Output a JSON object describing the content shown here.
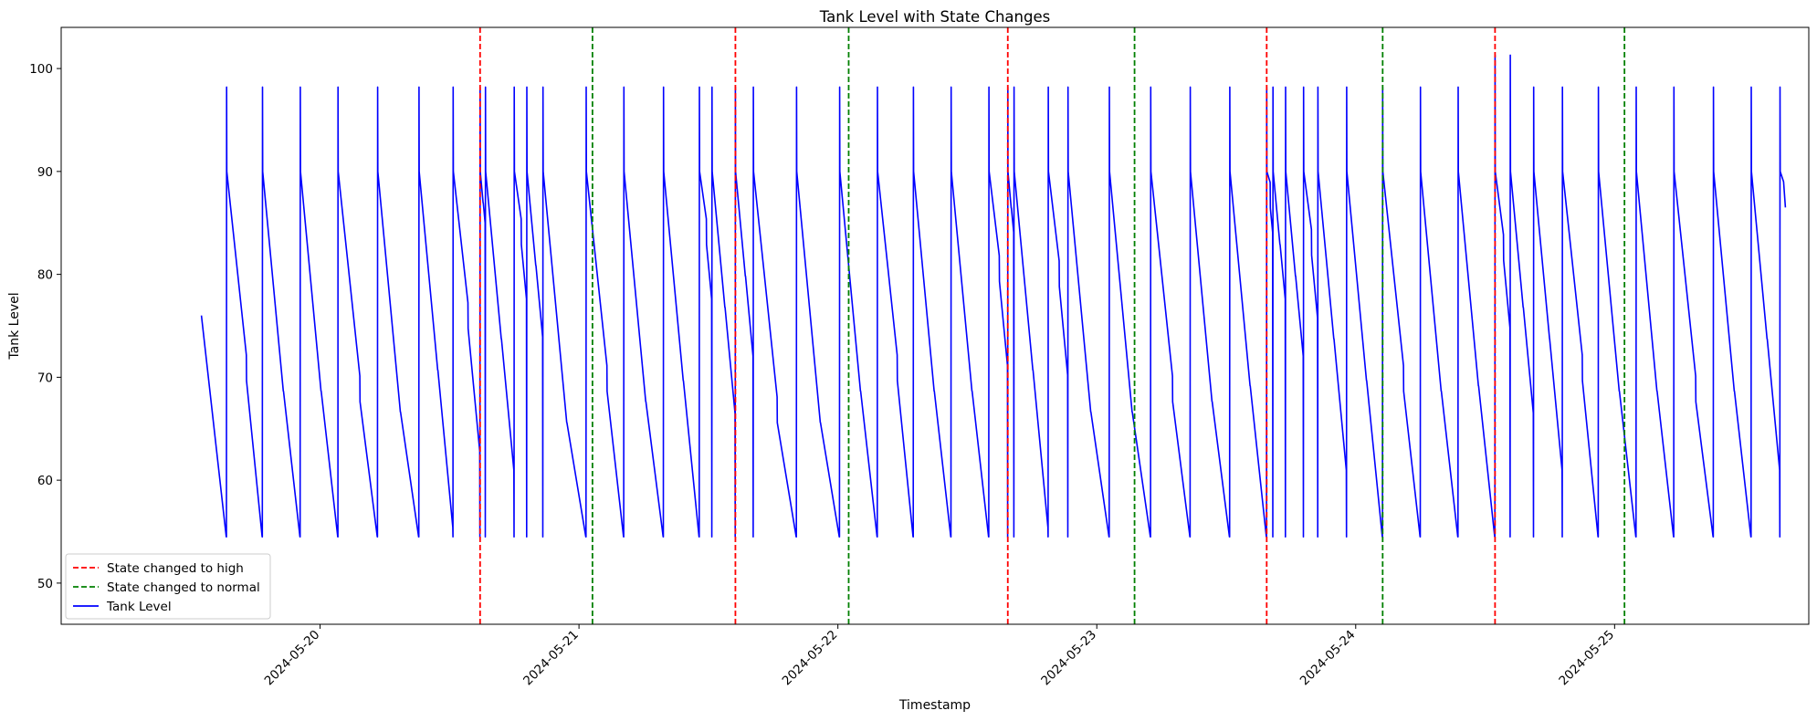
{
  "chart_data": {
    "type": "line",
    "title": "Tank Level with State Changes",
    "xlabel": "Timestamp",
    "ylabel": "Tank Level",
    "xlim": [
      "2024-05-19T00:00",
      "2024-05-25T18:00"
    ],
    "ylim": [
      46,
      104
    ],
    "x_ticks": [
      "2024-05-20",
      "2024-05-21",
      "2024-05-22",
      "2024-05-23",
      "2024-05-24",
      "2024-05-25"
    ],
    "y_ticks": [
      50,
      60,
      70,
      80,
      90,
      100
    ],
    "grid": false,
    "legend_position": "lower-left",
    "legend": [
      {
        "label": "State changed to high",
        "style": "dashed",
        "color": "#ff0000"
      },
      {
        "label": "State changed to normal",
        "style": "dashed",
        "color": "#008000"
      },
      {
        "label": "Tank Level",
        "style": "solid",
        "color": "#0000ff"
      }
    ],
    "vlines": [
      {
        "x": "2024-05-20T14:50",
        "state": "high",
        "color": "#ff0000"
      },
      {
        "x": "2024-05-21T01:15",
        "state": "normal",
        "color": "#008000"
      },
      {
        "x": "2024-05-21T14:30",
        "state": "high",
        "color": "#ff0000"
      },
      {
        "x": "2024-05-22T01:00",
        "state": "normal",
        "color": "#008000"
      },
      {
        "x": "2024-05-22T15:45",
        "state": "high",
        "color": "#ff0000"
      },
      {
        "x": "2024-05-23T03:30",
        "state": "normal",
        "color": "#008000"
      },
      {
        "x": "2024-05-23T15:45",
        "state": "high",
        "color": "#ff0000"
      },
      {
        "x": "2024-05-24T02:30",
        "state": "normal",
        "color": "#008000"
      },
      {
        "x": "2024-05-24T12:55",
        "state": "high",
        "color": "#ff0000"
      },
      {
        "x": "2024-05-25T00:55",
        "state": "normal",
        "color": "#008000"
      }
    ],
    "series": [
      {
        "name": "Tank Level",
        "color": "#0000ff",
        "start": "2024-05-19T13:00",
        "peaks": [
          "2024-05-19T15:20",
          "2024-05-19T18:40",
          "2024-05-19T22:10",
          "2024-05-20T01:40",
          "2024-05-20T05:20",
          "2024-05-20T09:10",
          "2024-05-20T12:20",
          "2024-05-20T14:50",
          "2024-05-20T15:20",
          "2024-05-20T18:00",
          "2024-05-20T19:10",
          "2024-05-20T20:40",
          "2024-05-21T00:40",
          "2024-05-21T04:10",
          "2024-05-21T07:50",
          "2024-05-21T11:10",
          "2024-05-21T12:20",
          "2024-05-21T14:30",
          "2024-05-21T16:10",
          "2024-05-21T20:10",
          "2024-05-22T00:10",
          "2024-05-22T03:40",
          "2024-05-22T07:00",
          "2024-05-22T10:30",
          "2024-05-22T14:00",
          "2024-05-22T15:45",
          "2024-05-22T16:20",
          "2024-05-22T19:30",
          "2024-05-22T21:20",
          "2024-05-23T01:10",
          "2024-05-23T05:00",
          "2024-05-23T08:40",
          "2024-05-23T12:20",
          "2024-05-23T15:45",
          "2024-05-23T16:20",
          "2024-05-23T17:30",
          "2024-05-23T19:10",
          "2024-05-23T20:30",
          "2024-05-23T23:10",
          "2024-05-24T02:30",
          "2024-05-24T06:00",
          "2024-05-24T09:30",
          "2024-05-24T12:55",
          "2024-05-24T14:20",
          "2024-05-24T16:30",
          "2024-05-24T19:10",
          "2024-05-24T22:30",
          "2024-05-25T02:00",
          "2024-05-25T05:30",
          "2024-05-25T09:10",
          "2024-05-25T12:40",
          "2024-05-25T15:20"
        ],
        "peak_value": 98.2,
        "max_value": 101.3,
        "after_fill_value": 90,
        "min_value": 54.5,
        "end_value": 86.5
      }
    ]
  }
}
